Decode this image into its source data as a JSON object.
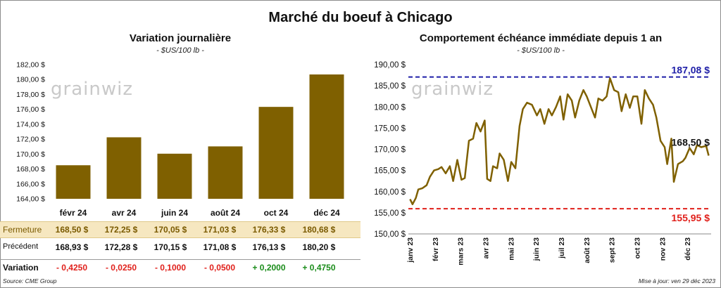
{
  "title": "Marché du boeuf à Chicago",
  "watermark": "grainwiz",
  "source": "Source: CME Group",
  "update": "Mise à jour: ven 29 déc 2023",
  "left_chart": {
    "subtitle": "Variation journalière",
    "unit": "- $US/100 lb -"
  },
  "right_chart": {
    "subtitle": "Comportement échéance immédiate depuis 1 an",
    "unit": "- $US/100 lb -"
  },
  "table": {
    "close_label": "Fermeture",
    "prev_label": "Précédent",
    "var_label": "Variation",
    "close": [
      "168,50 $",
      "172,25 $",
      "170,05 $",
      "171,03 $",
      "176,33 $",
      "180,68 $"
    ],
    "prev": [
      "168,93 $",
      "172,28 $",
      "170,15 $",
      "171,08 $",
      "176,13 $",
      "180,20 $"
    ],
    "variation": [
      "- 0,4250",
      "- 0,0250",
      "- 0,1000",
      "- 0,0500",
      "+ 0,2000",
      "+ 0,4750"
    ]
  },
  "colors": {
    "bar": "#7f6000",
    "line": "#7f6000",
    "high": "#1f1fa8",
    "low": "#e0201b",
    "negative": "#e0201b",
    "positive": "#1a8c1a"
  },
  "chart_data": [
    {
      "type": "bar",
      "categories": [
        "févr 24",
        "avr 24",
        "juin 24",
        "août 24",
        "oct 24",
        "déc 24"
      ],
      "values": [
        168.5,
        172.25,
        170.05,
        171.03,
        176.33,
        180.68
      ],
      "ylim": [
        164,
        182
      ],
      "yticks": [
        "164,00 $",
        "166,00 $",
        "168,00 $",
        "170,00 $",
        "172,00 $",
        "174,00 $",
        "176,00 $",
        "178,00 $",
        "180,00 $",
        "182,00 $"
      ]
    },
    {
      "type": "line",
      "ylim": [
        150,
        190
      ],
      "yticks": [
        "150,00 $",
        "155,00 $",
        "160,00 $",
        "165,00 $",
        "170,00 $",
        "175,00 $",
        "180,00 $",
        "185,00 $",
        "190,00 $"
      ],
      "xticks": [
        "janv 23",
        "févr 23",
        "mars 23",
        "avr 23",
        "mai 23",
        "juin 23",
        "juil 23",
        "août 23",
        "sept 23",
        "oct 23",
        "nov 23",
        "déc 23"
      ],
      "x": [
        "2023-01-03",
        "2023-01-06",
        "2023-01-10",
        "2023-01-13",
        "2023-01-18",
        "2023-01-23",
        "2023-01-27",
        "2023-02-01",
        "2023-02-06",
        "2023-02-10",
        "2023-02-15",
        "2023-02-20",
        "2023-02-24",
        "2023-03-01",
        "2023-03-06",
        "2023-03-10",
        "2023-03-15",
        "2023-03-20",
        "2023-03-24",
        "2023-03-29",
        "2023-04-03",
        "2023-04-06",
        "2023-04-10",
        "2023-04-13",
        "2023-04-18",
        "2023-04-21",
        "2023-04-26",
        "2023-05-01",
        "2023-05-05",
        "2023-05-10",
        "2023-05-15",
        "2023-05-19",
        "2023-05-24",
        "2023-05-30",
        "2023-06-05",
        "2023-06-09",
        "2023-06-14",
        "2023-06-19",
        "2023-06-23",
        "2023-06-28",
        "2023-07-03",
        "2023-07-07",
        "2023-07-12",
        "2023-07-17",
        "2023-07-21",
        "2023-07-26",
        "2023-07-31",
        "2023-08-04",
        "2023-08-09",
        "2023-08-14",
        "2023-08-18",
        "2023-08-23",
        "2023-08-28",
        "2023-09-01",
        "2023-09-06",
        "2023-09-11",
        "2023-09-15",
        "2023-09-20",
        "2023-09-25",
        "2023-09-29",
        "2023-10-04",
        "2023-10-09",
        "2023-10-13",
        "2023-10-18",
        "2023-10-23",
        "2023-10-27",
        "2023-11-01",
        "2023-11-06",
        "2023-11-09",
        "2023-11-14",
        "2023-11-17",
        "2023-11-22",
        "2023-11-28",
        "2023-12-01",
        "2023-12-06",
        "2023-12-11",
        "2023-12-15",
        "2023-12-20",
        "2023-12-26",
        "2023-12-29"
      ],
      "y": [
        158.2,
        157.0,
        158.5,
        160.5,
        160.8,
        161.5,
        163.5,
        165.0,
        165.3,
        165.8,
        164.3,
        166.0,
        162.5,
        167.5,
        162.8,
        163.2,
        172.0,
        172.5,
        176.2,
        174.2,
        176.8,
        163.0,
        162.5,
        166.0,
        165.5,
        169.0,
        167.5,
        162.5,
        167.0,
        165.5,
        175.5,
        179.5,
        181.0,
        180.5,
        178.0,
        179.5,
        176.0,
        179.5,
        178.0,
        180.0,
        182.5,
        177.0,
        183.0,
        181.5,
        177.5,
        181.5,
        184.0,
        182.5,
        180.0,
        177.5,
        182.0,
        181.5,
        182.5,
        186.8,
        184.0,
        183.5,
        179.0,
        183.0,
        179.8,
        182.5,
        182.5,
        176.0,
        184.0,
        182.0,
        180.5,
        177.5,
        172.0,
        170.5,
        166.5,
        172.5,
        162.3,
        166.5,
        167.2,
        168.0,
        170.3,
        168.8,
        171.0,
        170.5,
        170.8,
        168.5
      ],
      "high": 187.08,
      "low": 155.95,
      "high_label": "187,08 $",
      "low_label": "155,95 $",
      "last_label": "168,50 $"
    }
  ]
}
